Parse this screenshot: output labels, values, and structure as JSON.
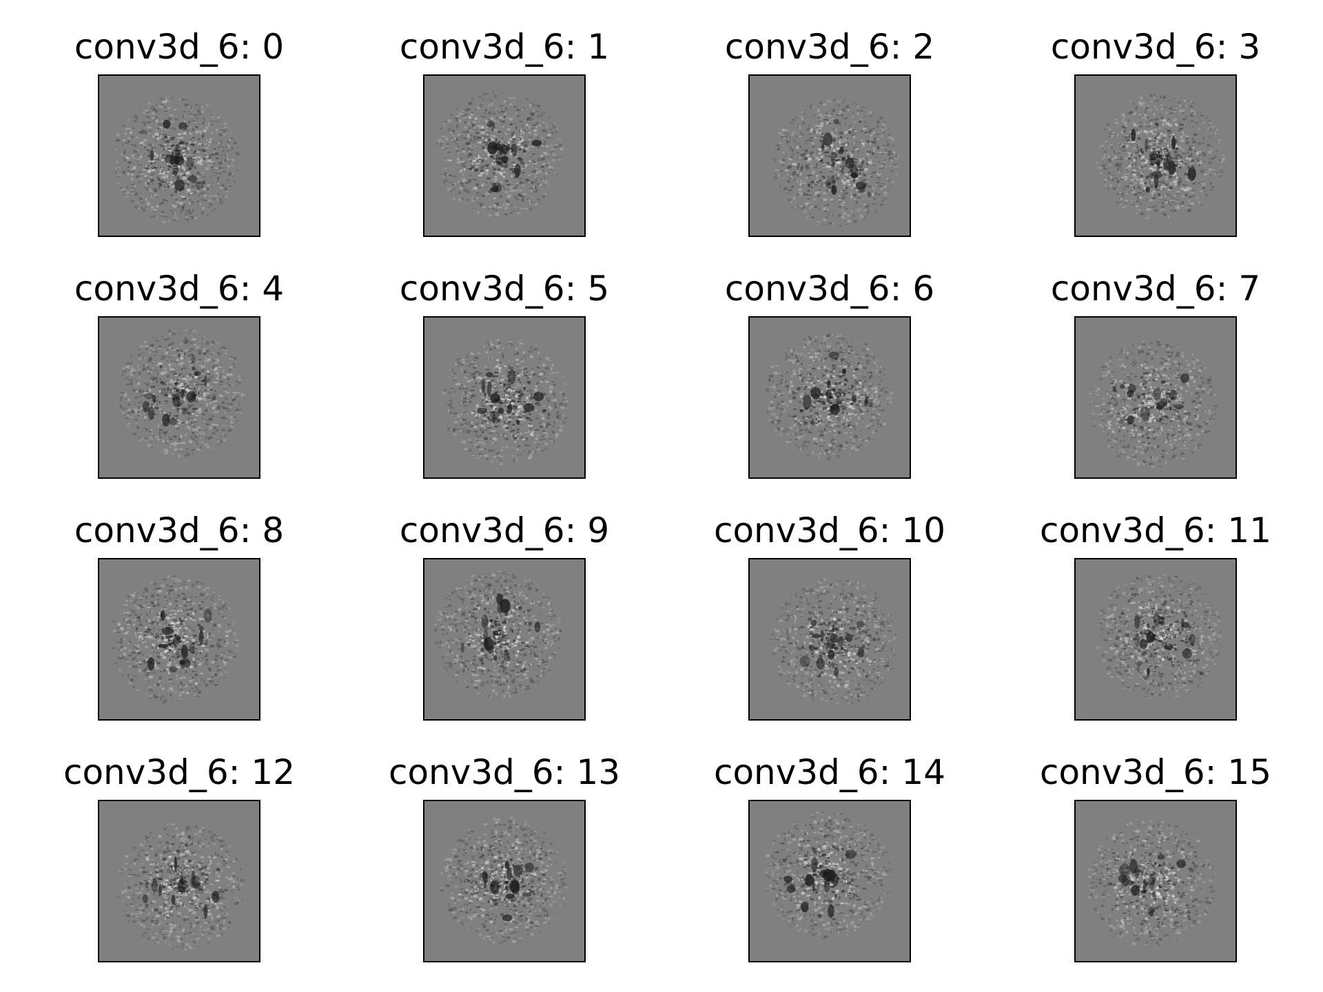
{
  "panels": [
    {
      "title": "conv3d_6: 0",
      "image": "grayscale-filter-visualization-0"
    },
    {
      "title": "conv3d_6: 1",
      "image": "grayscale-filter-visualization-1"
    },
    {
      "title": "conv3d_6: 2",
      "image": "grayscale-filter-visualization-2"
    },
    {
      "title": "conv3d_6: 3",
      "image": "grayscale-filter-visualization-3"
    },
    {
      "title": "conv3d_6: 4",
      "image": "grayscale-filter-visualization-4"
    },
    {
      "title": "conv3d_6: 5",
      "image": "grayscale-filter-visualization-5"
    },
    {
      "title": "conv3d_6: 6",
      "image": "grayscale-filter-visualization-6"
    },
    {
      "title": "conv3d_6: 7",
      "image": "grayscale-filter-visualization-7"
    },
    {
      "title": "conv3d_6: 8",
      "image": "grayscale-filter-visualization-8"
    },
    {
      "title": "conv3d_6: 9",
      "image": "grayscale-filter-visualization-9"
    },
    {
      "title": "conv3d_6: 10",
      "image": "grayscale-filter-visualization-10"
    },
    {
      "title": "conv3d_6: 11",
      "image": "grayscale-filter-visualization-11"
    },
    {
      "title": "conv3d_6: 12",
      "image": "grayscale-filter-visualization-12"
    },
    {
      "title": "conv3d_6: 13",
      "image": "grayscale-filter-visualization-13"
    },
    {
      "title": "conv3d_6: 14",
      "image": "grayscale-filter-visualization-14"
    },
    {
      "title": "conv3d_6: 15",
      "image": "grayscale-filter-visualization-15"
    }
  ],
  "colors": {
    "background": "#808080",
    "frame": "#000000",
    "dark": "#1a1a1a",
    "light": "#f2f2f2"
  }
}
